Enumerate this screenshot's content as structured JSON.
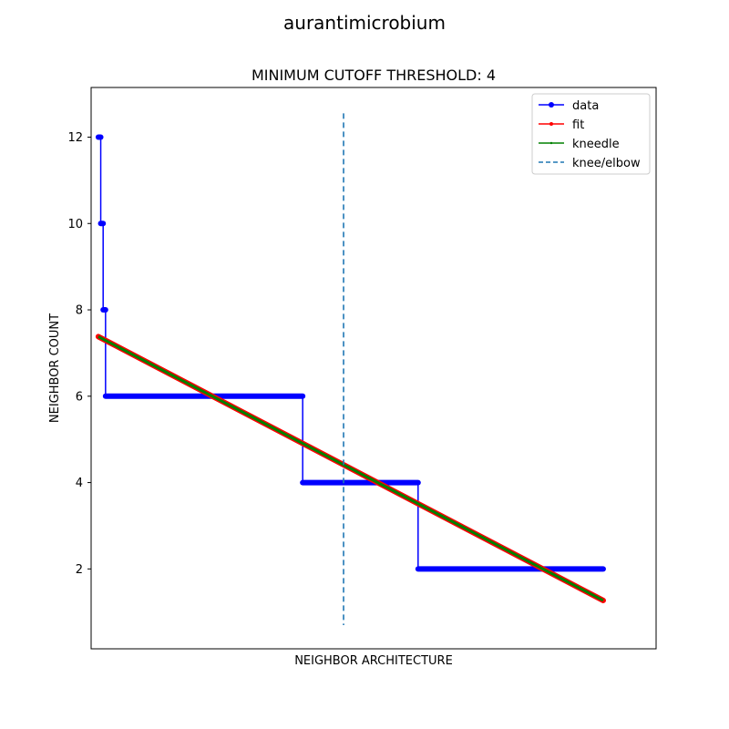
{
  "figure": {
    "suptitle": "aurantimicrobium"
  },
  "chart_data": {
    "type": "line",
    "title": "MINIMUM CUTOFF THRESHOLD: 4",
    "xlabel": "NEIGHBOR ARCHITECTURE",
    "ylabel": "NEIGHBOR COUNT",
    "xlim": [
      -3,
      232
    ],
    "ylim": [
      0.15,
      13.15
    ],
    "x_ticks_visible": false,
    "yticks": [
      2,
      4,
      6,
      8,
      10,
      12
    ],
    "ytick_labels": [
      "2",
      "4",
      "6",
      "8",
      "10",
      "12"
    ],
    "grid": false,
    "legend": {
      "placement": "top-right",
      "entries": [
        "data",
        "fit",
        "kneedle",
        "knee/elbow"
      ]
    },
    "data_steps": [
      {
        "x_start": 0,
        "x_end": 1,
        "y": 12
      },
      {
        "x_start": 1,
        "x_end": 2,
        "y": 10
      },
      {
        "x_start": 2,
        "x_end": 3,
        "y": 8
      },
      {
        "x_start": 3,
        "x_end": 85,
        "y": 6
      },
      {
        "x_start": 85,
        "x_end": 133,
        "y": 4
      },
      {
        "x_start": 133,
        "x_end": 210,
        "y": 2
      }
    ],
    "fit": {
      "x": [
        0,
        210
      ],
      "y": [
        7.38,
        1.27
      ]
    },
    "kneedle": {
      "x": [
        0,
        210
      ],
      "y": [
        7.38,
        1.27
      ]
    },
    "knee_x": 102,
    "knee_line_y_range": [
      0.7,
      12.55
    ],
    "colors": {
      "data": "#0000ff",
      "fit": "#ff0000",
      "kneedle": "#008000",
      "knee": "#1f77b4"
    }
  }
}
